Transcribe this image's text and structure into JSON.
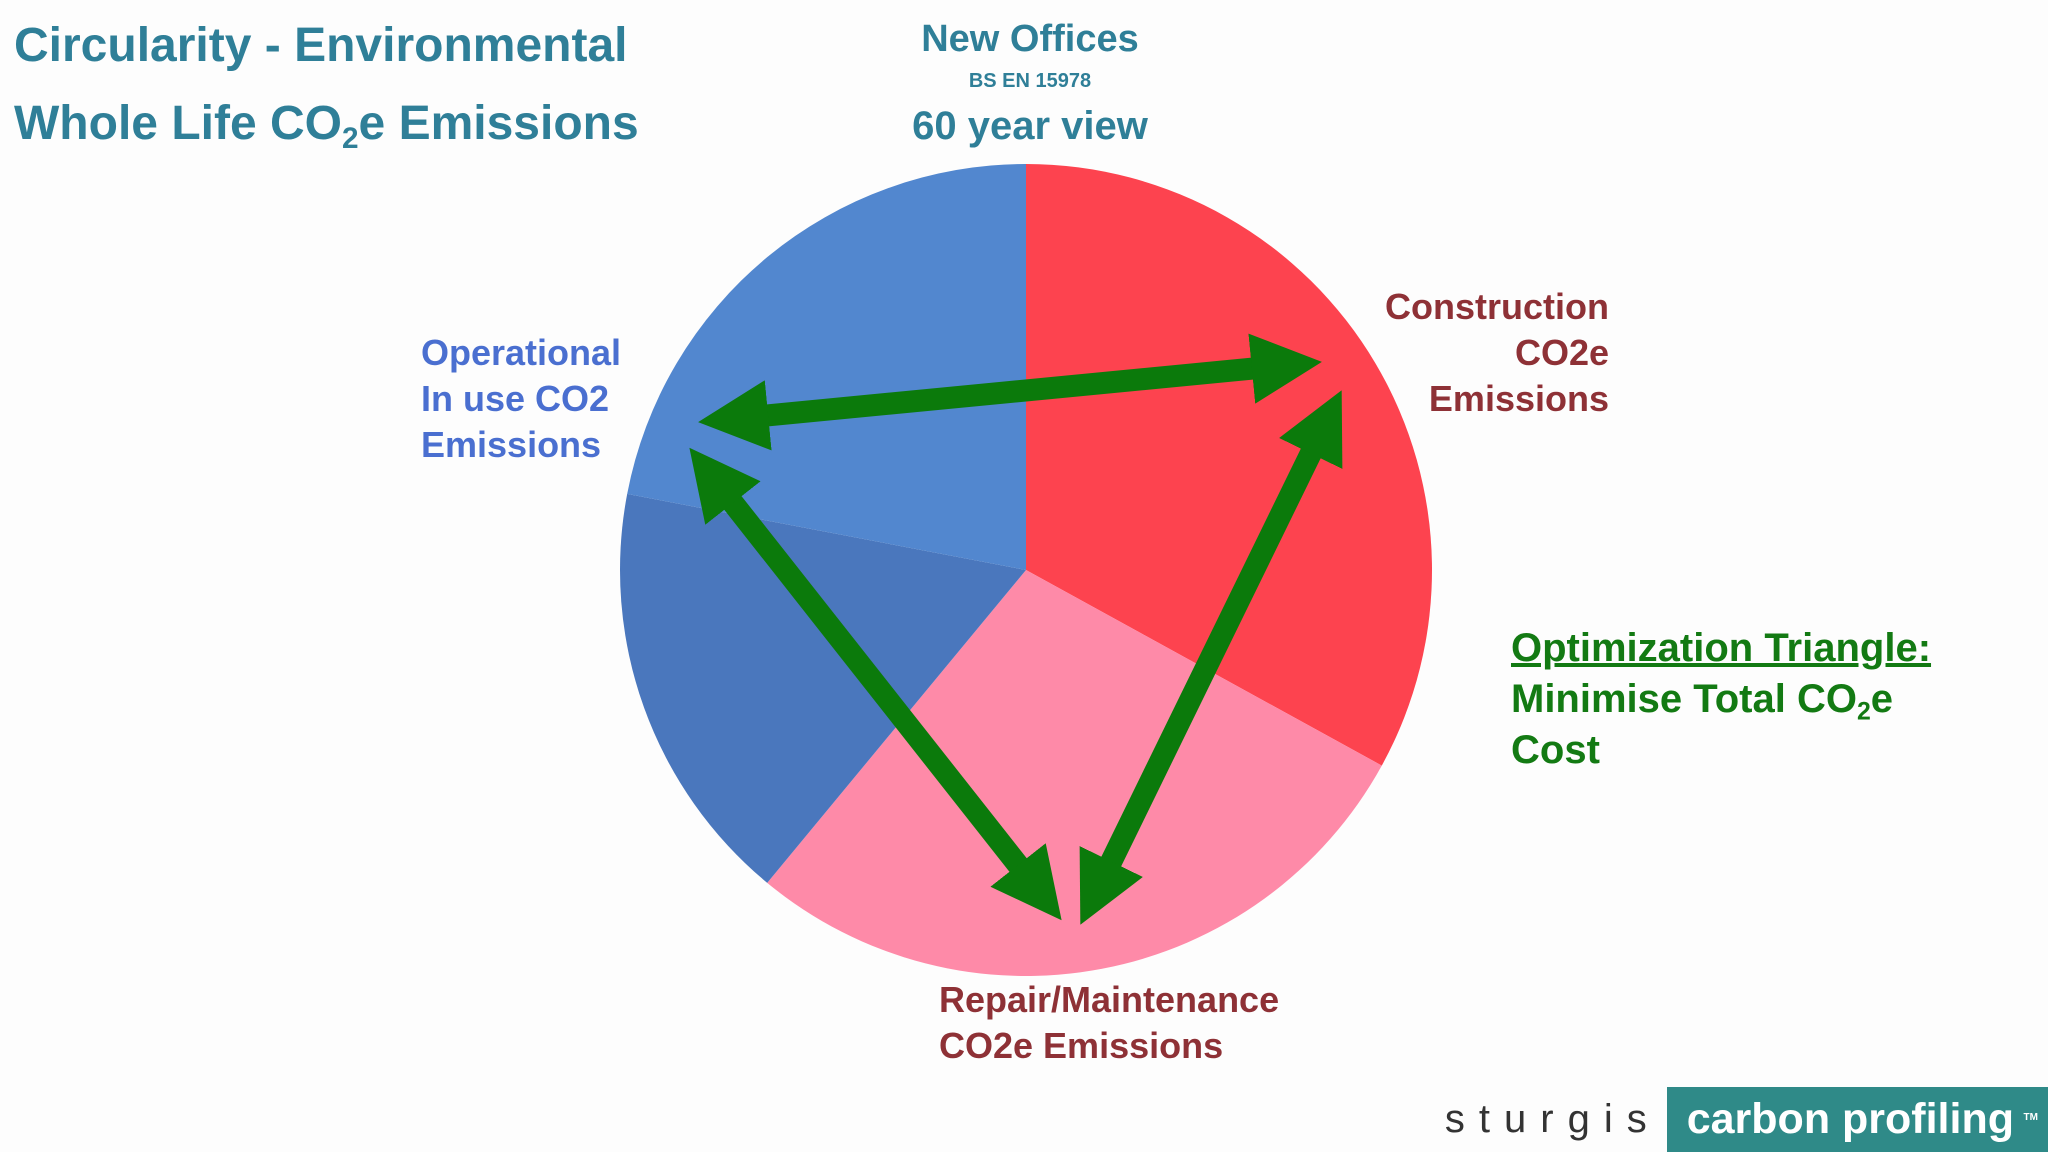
{
  "title": {
    "line1": "Circularity - Environmental",
    "line2_pre": "Whole Life CO",
    "line2_sub": "2",
    "line2_post": "e Emissions"
  },
  "header": {
    "line1": "New Offices",
    "line2": "BS EN 15978",
    "line3": "60 year view"
  },
  "labels": {
    "operational": [
      "Operational",
      "In use CO2",
      "Emissions"
    ],
    "construction": [
      "Construction",
      "CO2e",
      "Emissions"
    ],
    "repair": [
      "Repair/Maintenance",
      "CO2e Emissions"
    ]
  },
  "optimization": {
    "heading": "Optimization Triangle:",
    "line2_pre": "Minimise Total CO",
    "line2_sub": "2",
    "line2_post": "e",
    "line3": "Cost"
  },
  "footer": {
    "brand": "sturgis",
    "product": "carbon profiling",
    "tm": "TM"
  },
  "colors": {
    "construction": "#fd434f",
    "repair": "#fe8aa8",
    "operational_lower": "#4a77bd",
    "operational_upper": "#5287cf",
    "arrow": "#0b7a0b"
  },
  "chart_data": {
    "type": "pie",
    "title": "",
    "slices": [
      {
        "label": "Construction CO2e Emissions",
        "value": 33,
        "color": "#fd434f"
      },
      {
        "label": "Repair/Maintenance CO2e Emissions",
        "value": 28,
        "color": "#fe8aa8"
      },
      {
        "label": "Operational In use CO2 Emissions",
        "value": 39,
        "color": "#4a77bd"
      }
    ],
    "operational_split": [
      {
        "part": "lower",
        "value": 17,
        "color": "#4a77bd"
      },
      {
        "part": "upper",
        "value": 22,
        "color": "#5287cf"
      }
    ],
    "annotations": [
      "Optimization Triangle: Minimise Total CO2e Cost"
    ]
  }
}
